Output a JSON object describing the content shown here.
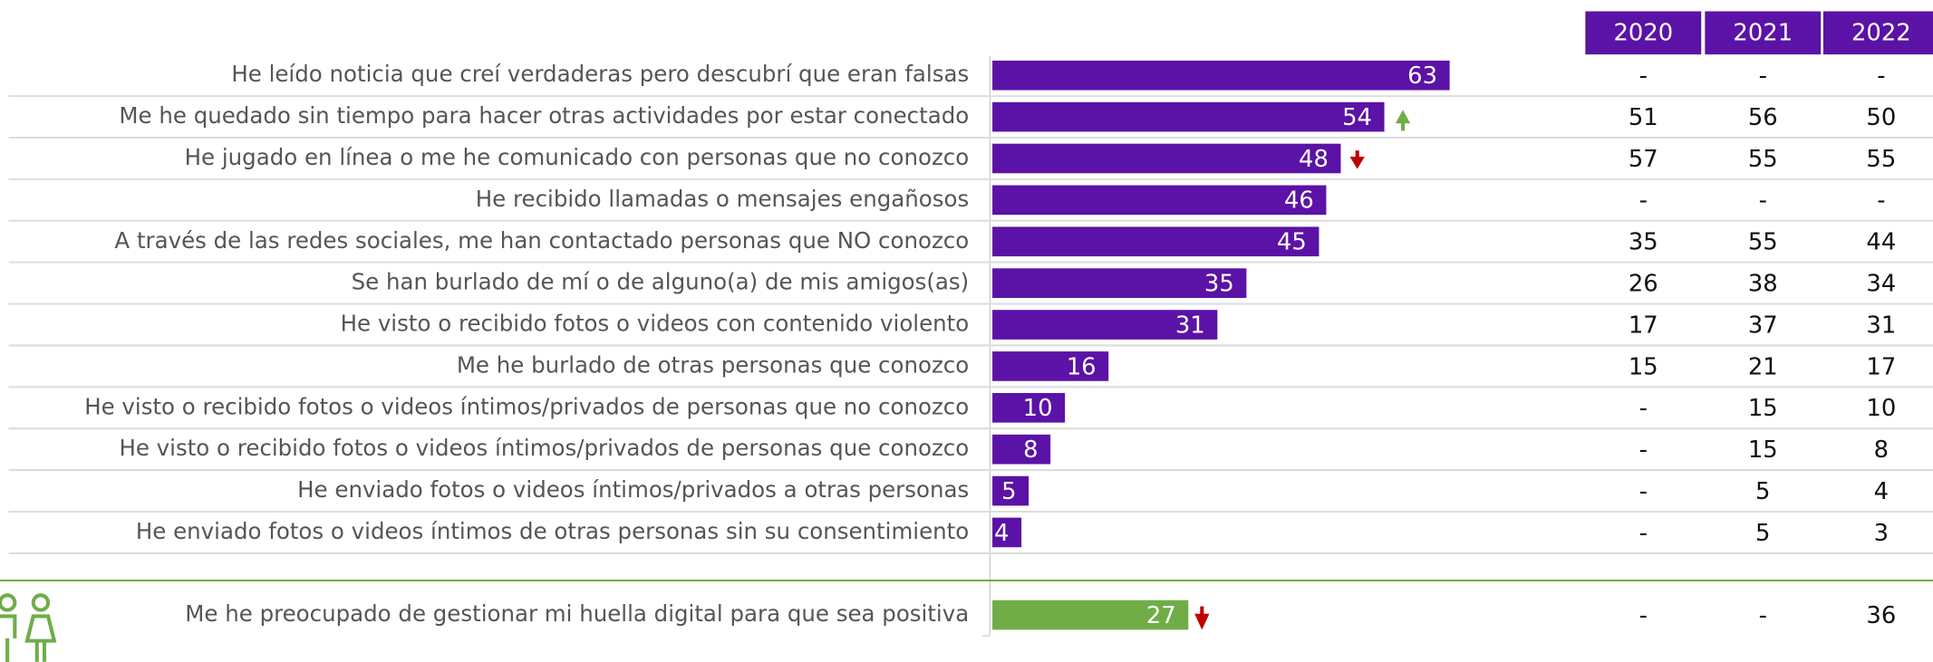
{
  "chart_data": [
    {
      "type": "bar",
      "orientation": "horizontal",
      "color": "#5b12a6",
      "xlim": [
        0,
        80
      ],
      "categories": [
        "He leído noticia que creí verdaderas pero descubrí que eran falsas",
        "Me he quedado sin tiempo para hacer otras actividades por estar conectado",
        "He jugado en línea o me he comunicado con personas que no conozco",
        "He recibido llamadas o mensajes engañosos",
        "A través de las redes sociales, me han contactado personas que NO conozco",
        "Se han burlado de mí o de alguno(a) de mis amigos(as)",
        "He visto o recibido fotos o videos con contenido violento",
        "Me he burlado de otras personas que conozco",
        "He visto o recibido fotos o videos íntimos/privados de personas que no conozco",
        "He visto o recibido fotos o videos íntimos/privados de personas que conozco",
        "He enviado fotos o videos íntimos/privados a otras personas",
        "He enviado fotos o videos íntimos de otras personas sin su consentimiento"
      ],
      "values": [
        63,
        54,
        48,
        46,
        45,
        35,
        31,
        16,
        10,
        8,
        5,
        4
      ]
    },
    {
      "type": "bar",
      "orientation": "horizontal",
      "color": "#70ad47",
      "xlim": [
        0,
        80
      ],
      "categories": [
        "Me he preocupado de gestionar mi huella digital para que sea positiva"
      ],
      "values": [
        27
      ]
    }
  ],
  "table": {
    "columns": [
      "2020",
      "2021",
      "2022"
    ],
    "rows": [
      [
        "-",
        "-",
        "-"
      ],
      [
        51,
        56,
        50
      ],
      [
        57,
        55,
        55
      ],
      [
        "-",
        "-",
        "-"
      ],
      [
        35,
        55,
        44
      ],
      [
        26,
        38,
        34
      ],
      [
        17,
        37,
        31
      ],
      [
        15,
        21,
        17
      ],
      [
        "-",
        15,
        10
      ],
      [
        "-",
        15,
        8
      ],
      [
        "-",
        5,
        4
      ],
      [
        "-",
        5,
        3
      ],
      [
        "-",
        "-",
        36
      ]
    ]
  }
}
